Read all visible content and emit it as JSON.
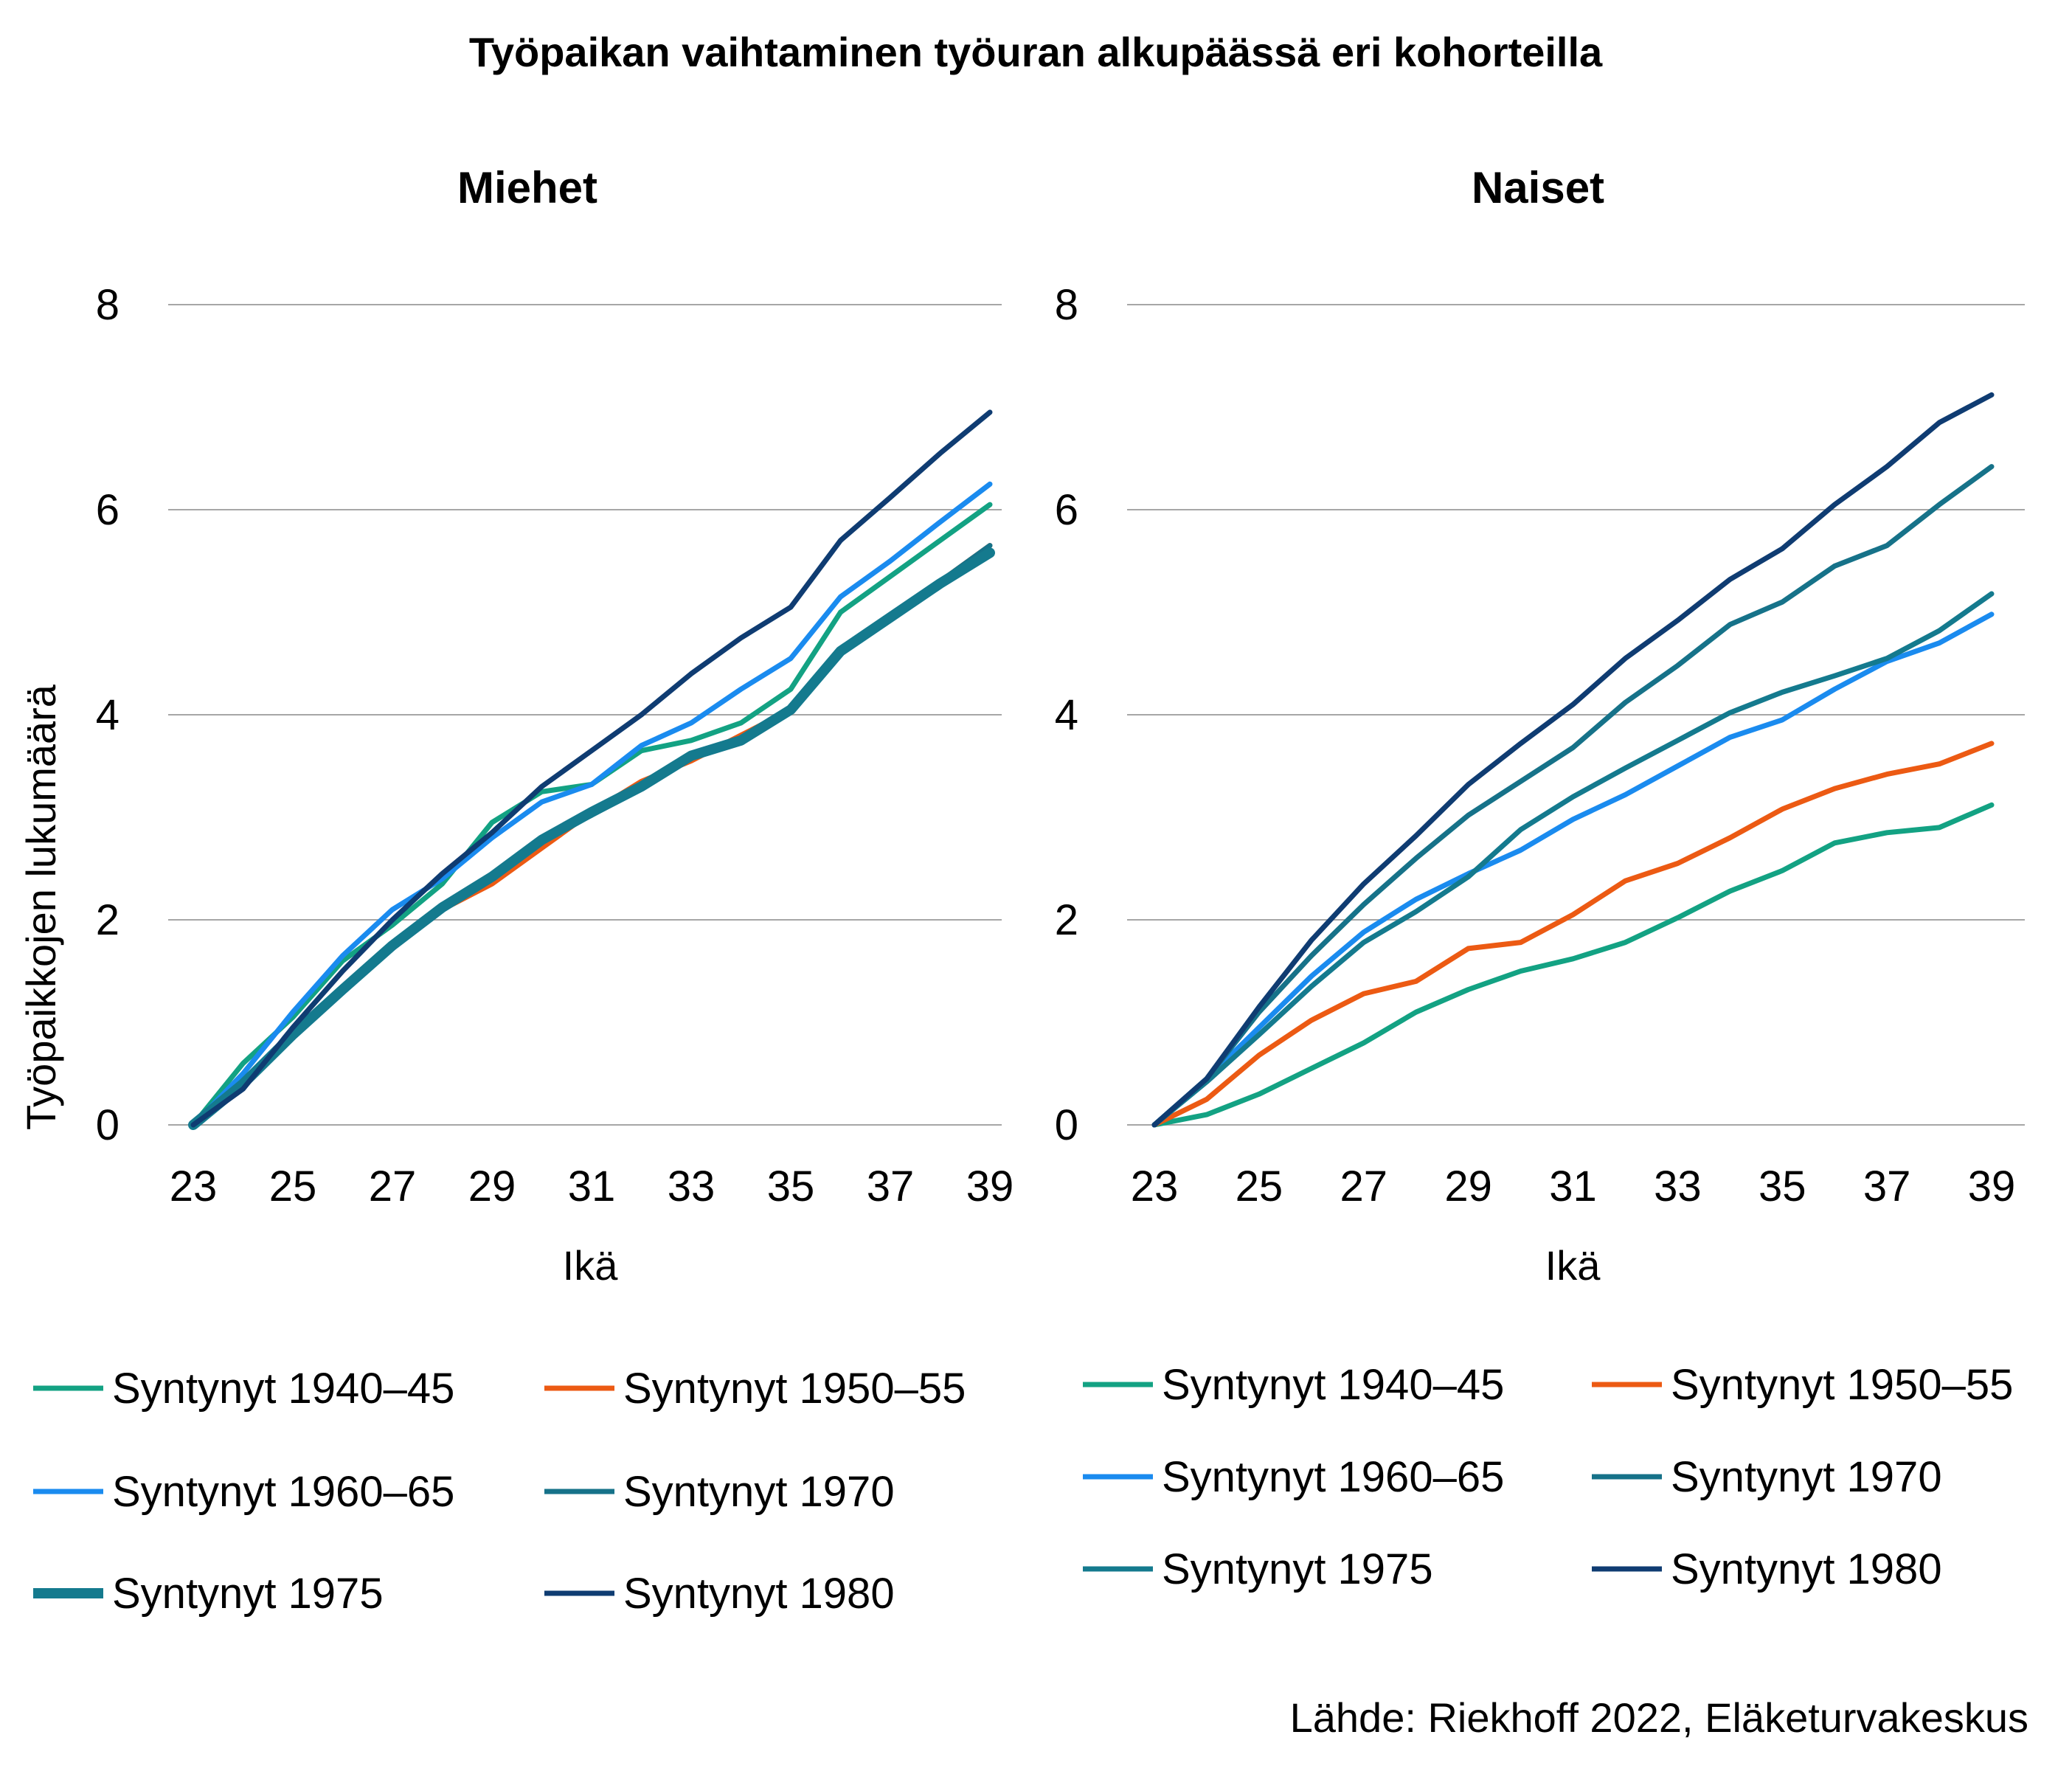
{
  "title": "Työpaikan vaihtaminen työuran alkupäässä eri kohorteilla",
  "source": "Lähde: Riekhoff 2022, Eläketurvakeskus",
  "colors": {
    "c1940": "#13a283",
    "c1950": "#ec5a13",
    "c1960": "#1a8bef",
    "c1970": "#167289",
    "c1975": "#147a8e",
    "c1980": "#0f3c72",
    "grid": "#a6a6a6"
  },
  "chart_data": [
    {
      "type": "line",
      "title": "Miehet",
      "xlabel": "Ikä",
      "ylabel": "Työpaikkojen lukumäärä",
      "x": [
        23,
        24,
        25,
        26,
        27,
        28,
        29,
        30,
        31,
        32,
        33,
        34,
        35,
        36,
        37,
        38,
        39
      ],
      "x_ticks": [
        "23",
        "25",
        "27",
        "29",
        "31",
        "33",
        "35",
        "37",
        "39"
      ],
      "y_ticks": [
        "0",
        "2",
        "4",
        "6",
        "8"
      ],
      "ylim": [
        0,
        8
      ],
      "grid": true,
      "legend_position": "bottom",
      "series": [
        {
          "name": "Syntynyt 1940–45",
          "color_key": "c1940",
          "width": 7,
          "values": [
            0,
            0.6,
            1.05,
            1.6,
            1.95,
            2.35,
            2.95,
            3.25,
            3.32,
            3.65,
            3.75,
            3.92,
            4.25,
            5.0,
            5.35,
            5.7,
            6.05
          ]
        },
        {
          "name": "Syntynyt 1950–55",
          "color_key": "c1950",
          "width": 7,
          "values": [
            0,
            0.4,
            0.85,
            1.3,
            1.75,
            2.1,
            2.35,
            2.7,
            3.05,
            3.35,
            3.55,
            3.8,
            4.05,
            4.6,
            4.95,
            5.3,
            5.65
          ]
        },
        {
          "name": "Syntynyt 1960–65",
          "color_key": "c1960",
          "width": 7,
          "values": [
            0,
            0.5,
            1.1,
            1.65,
            2.1,
            2.4,
            2.8,
            3.15,
            3.32,
            3.7,
            3.92,
            4.25,
            4.55,
            5.15,
            5.5,
            5.88,
            6.25
          ]
        },
        {
          "name": "Syntynyt 1970",
          "color_key": "c1970",
          "width": 7,
          "values": [
            0,
            0.42,
            0.9,
            1.35,
            1.75,
            2.15,
            2.4,
            2.78,
            3.02,
            3.28,
            3.6,
            3.75,
            4.05,
            4.6,
            4.95,
            5.3,
            5.65
          ]
        },
        {
          "name": "Syntynyt 1975",
          "color_key": "c1975",
          "width": 14,
          "values": [
            0,
            0.4,
            0.88,
            1.32,
            1.75,
            2.12,
            2.42,
            2.78,
            3.05,
            3.3,
            3.6,
            3.75,
            4.05,
            4.62,
            4.95,
            5.28,
            5.58
          ]
        },
        {
          "name": "Syntynyt 1980",
          "color_key": "c1980",
          "width": 7,
          "values": [
            0,
            0.35,
            0.95,
            1.5,
            2.0,
            2.45,
            2.85,
            3.3,
            3.65,
            4.0,
            4.4,
            4.75,
            5.05,
            5.7,
            6.12,
            6.55,
            6.95
          ]
        }
      ]
    },
    {
      "type": "line",
      "title": "Naiset",
      "xlabel": "Ikä",
      "ylabel": "",
      "x": [
        23,
        24,
        25,
        26,
        27,
        28,
        29,
        30,
        31,
        32,
        33,
        34,
        35,
        36,
        37,
        38,
        39
      ],
      "x_ticks": [
        "23",
        "25",
        "27",
        "29",
        "31",
        "33",
        "35",
        "37",
        "39"
      ],
      "y_ticks": [
        "0",
        "2",
        "4",
        "6",
        "8"
      ],
      "ylim": [
        0,
        8
      ],
      "grid": true,
      "legend_position": "bottom",
      "series": [
        {
          "name": "Syntynyt 1940–45",
          "color_key": "c1940",
          "width": 7,
          "values": [
            0,
            0.1,
            0.3,
            0.55,
            0.8,
            1.1,
            1.32,
            1.5,
            1.62,
            1.78,
            2.02,
            2.28,
            2.48,
            2.75,
            2.85,
            2.9,
            3.12
          ]
        },
        {
          "name": "Syntynyt 1950–55",
          "color_key": "c1950",
          "width": 7,
          "values": [
            0,
            0.25,
            0.68,
            1.02,
            1.28,
            1.4,
            1.72,
            1.78,
            2.05,
            2.38,
            2.55,
            2.8,
            3.08,
            3.28,
            3.42,
            3.52,
            3.72
          ]
        },
        {
          "name": "Syntynyt 1960–65",
          "color_key": "c1960",
          "width": 7,
          "values": [
            0,
            0.45,
            0.95,
            1.45,
            1.88,
            2.2,
            2.45,
            2.68,
            2.98,
            3.22,
            3.5,
            3.78,
            3.95,
            4.25,
            4.52,
            4.7,
            4.98
          ]
        },
        {
          "name": "Syntynyt 1970",
          "color_key": "c1970",
          "width": 7,
          "values": [
            0,
            0.45,
            1.1,
            1.65,
            2.15,
            2.6,
            3.02,
            3.35,
            3.68,
            4.12,
            4.48,
            4.88,
            5.1,
            5.45,
            5.65,
            6.05,
            6.42
          ]
        },
        {
          "name": "Syntynyt 1975",
          "color_key": "c1975",
          "width": 7,
          "values": [
            0,
            0.42,
            0.88,
            1.35,
            1.78,
            2.08,
            2.42,
            2.88,
            3.2,
            3.48,
            3.75,
            4.02,
            4.22,
            4.38,
            4.55,
            4.82,
            5.18
          ]
        },
        {
          "name": "Syntynyt 1980",
          "color_key": "c1980",
          "width": 7,
          "values": [
            0,
            0.45,
            1.15,
            1.8,
            2.35,
            2.82,
            3.32,
            3.72,
            4.1,
            4.55,
            4.92,
            5.32,
            5.62,
            6.05,
            6.42,
            6.85,
            7.12
          ]
        }
      ]
    }
  ]
}
